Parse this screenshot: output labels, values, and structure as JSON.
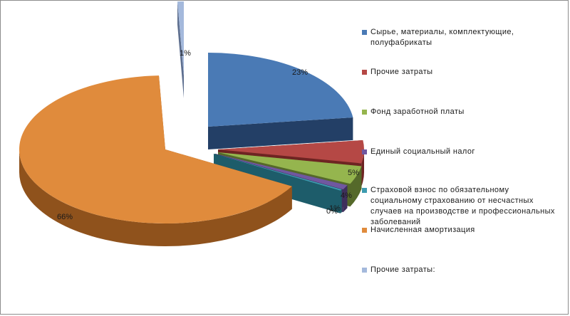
{
  "chart_data": {
    "type": "pie",
    "exploded_3d": true,
    "slices": [
      {
        "name": "Сырье, материалы, комплектующие, полуфабрикаты",
        "value": 23,
        "label": "23%",
        "color": "#4a7ab5",
        "side": "#233f66"
      },
      {
        "name": "Прочие затраты",
        "value": 5,
        "label": "5%",
        "color": "#b54845",
        "side": "#6e2422"
      },
      {
        "name": "Фонд заработной платы",
        "value": 4,
        "label": "4%",
        "color": "#95b54e",
        "side": "#55692a"
      },
      {
        "name": "Единый социальный налог",
        "value": 1,
        "label": "1%",
        "color": "#7058a0",
        "side": "#3e2f5c"
      },
      {
        "name": "Страховой взнос по обязательному социальному страхованию от несчастных случаев на производстве и профессиональных заболеваний",
        "value": 0.3,
        "label": "0%",
        "color": "#3d9bb0",
        "side": "#1d5c6a"
      },
      {
        "name": "Начисленная амортизация",
        "value": 66,
        "label": "66%",
        "color": "#e08b3c",
        "side": "#8f521c"
      },
      {
        "name": "Прочие затраты:",
        "value": 0.7,
        "label": "1%",
        "color": "#a4b9dc",
        "side": "#5e6f8f"
      }
    ]
  }
}
